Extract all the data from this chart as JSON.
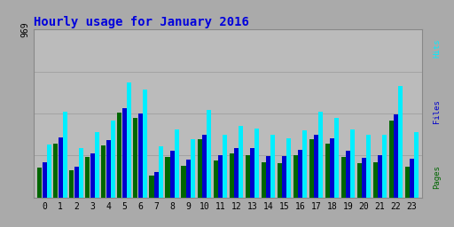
{
  "title": "Hourly usage for January 2016",
  "title_color": "#0000dd",
  "title_fontsize": 10,
  "background_color": "#aaaaaa",
  "plot_bg_color": "#bbbbbb",
  "hours": [
    0,
    1,
    2,
    3,
    4,
    5,
    6,
    7,
    8,
    9,
    10,
    11,
    12,
    13,
    14,
    15,
    16,
    17,
    18,
    19,
    20,
    21,
    22,
    23
  ],
  "pages": [
    175,
    310,
    155,
    235,
    300,
    490,
    460,
    125,
    235,
    185,
    335,
    215,
    255,
    245,
    205,
    200,
    245,
    335,
    310,
    235,
    200,
    205,
    445,
    180
  ],
  "files": [
    205,
    345,
    178,
    255,
    330,
    515,
    485,
    145,
    268,
    218,
    360,
    243,
    283,
    283,
    238,
    238,
    273,
    363,
    343,
    268,
    228,
    243,
    478,
    223
  ],
  "hits": [
    305,
    495,
    283,
    378,
    445,
    665,
    625,
    293,
    393,
    338,
    505,
    363,
    413,
    398,
    363,
    343,
    388,
    493,
    458,
    393,
    363,
    363,
    645,
    378
  ],
  "pages_color": "#006600",
  "files_color": "#0000cc",
  "hits_color": "#00eeff",
  "ylim_max": 969,
  "ytick_label": "969",
  "grid_color": "#999999",
  "label_parts": [
    {
      "text": "Pages",
      "color": "#006600"
    },
    {
      "text": " / ",
      "color": "#aaaaaa"
    },
    {
      "text": "Files",
      "color": "#0000cc"
    },
    {
      "text": " / ",
      "color": "#aaaaaa"
    },
    {
      "text": "Hits",
      "color": "#00eeff"
    }
  ]
}
